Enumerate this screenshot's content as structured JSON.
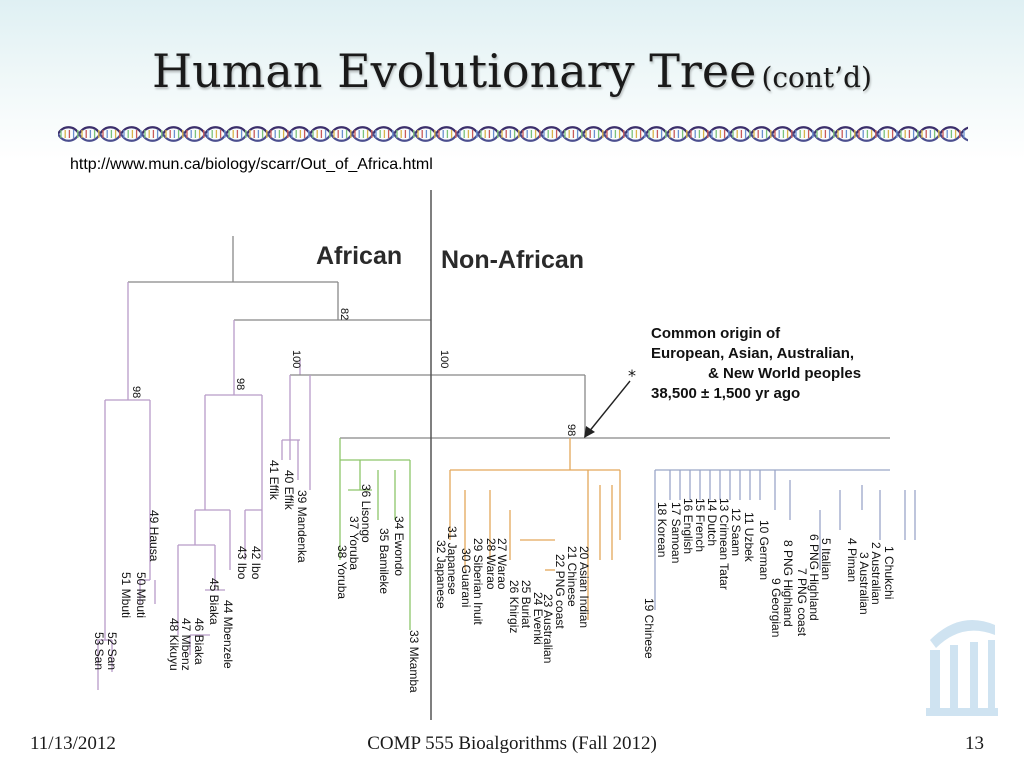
{
  "slide": {
    "title": "Human Evolutionary Tree",
    "title_suffix": "(cont’d)",
    "url": "http://www.mun.ca/biology/scarr/Out_of_Africa.html",
    "footer_date": "11/13/2012",
    "footer_course": "COMP 555 Bioalgorithms (Fall 2012)",
    "footer_page": "13"
  },
  "tree": {
    "heading_left": "African",
    "heading_right": "Non-African",
    "bootstrap": [
      "82",
      "100",
      "100",
      "98",
      "98",
      "98"
    ],
    "annotation_lines": [
      "Common origin of",
      "European, Asian, Australian,",
      "& New World peoples",
      "38,500 ± 1,500 yr ago"
    ],
    "asterisk": "*",
    "leaves": [
      "53 San",
      "52 San",
      "51 Mbuti",
      "50 Mbuti",
      "49 Hausa",
      "48 Kikuyu",
      "47 Mbenz",
      "46 Biaka",
      "45 Biaka",
      "44 Mbenzele",
      "43 Ibo",
      "42 Ibo",
      "41 Effik",
      "40 Effik",
      "39 Mandenka",
      "38 Yoruba",
      "37 Yoruba",
      "36 Lisongo",
      "35 Bamileke",
      "34 Ewondo",
      "33 Mkamba",
      "32 Japanese",
      "31 Japanese",
      "30 Guarani",
      "29 Siberian Inuit",
      "28 Warao",
      "27 Warao",
      "26 Khirgiz",
      "25 Buriat",
      "24 Evenki",
      "23 Australian",
      "22 PNG coast",
      "21 Chinese",
      "20 Asian Indian",
      "19 Chinese",
      "18 Korean",
      "17 Samoan",
      "16 English",
      "15 French",
      "14 Dutch",
      "13 Crimean Tatar",
      "12 Saam",
      "11 Uzbek",
      "10 German",
      "9 Georgian",
      "8 PNG Highland",
      "7 PNG coast",
      "6 PNG Highland",
      "5 Italian",
      "4 Piman",
      "3 Australian",
      "2 Australian",
      "1 Chukchi"
    ]
  },
  "colors": {
    "african_branch": "#b89cc8",
    "african_green": "#8dc56a",
    "asian_orange": "#e3a85a",
    "european_blue": "#9aa6c8",
    "trunk": "#888888",
    "divider": "#555555",
    "logo": "#cfe3f1"
  }
}
